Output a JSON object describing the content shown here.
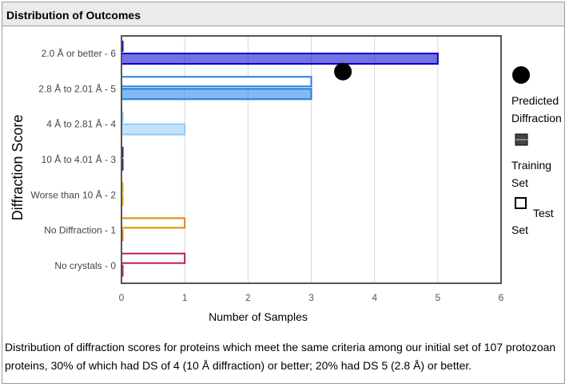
{
  "panel": {
    "title": "Distribution of Outcomes"
  },
  "caption": "Distribution of diffraction scores for proteins which meet the same criteria among our initial set of 107 protozoan proteins, 30% of which had DS of 4 (10 Å diffraction) or better; 20% had DS 5 (2.8 Å) or better.",
  "legend": {
    "predicted_line1": "Predicted",
    "predicted_line2": "Diffraction",
    "training_line1": "Training",
    "training_line2": "Set",
    "test_line1": "Test",
    "test_line2": "Set"
  },
  "chart_data": {
    "type": "bar",
    "orientation": "horizontal",
    "ylabel": "Diffraction Score",
    "xlabel": "Number of Samples",
    "xlim": [
      0,
      6
    ],
    "xticks": [
      0,
      1,
      2,
      3,
      4,
      5,
      6
    ],
    "grid": true,
    "legend_position": "right",
    "categories": [
      "2.0 Å or better - 6",
      "2.8 Å to 2.01 Å - 5",
      "4 Å to 2.81 Å - 4",
      "10 Å to 4.01 Å - 3",
      "Worse than 10 Å - 2",
      "No Diffraction - 1",
      "No crystals - 0"
    ],
    "category_colors": [
      "#0000cc",
      "#1e7fe8",
      "#90caf9",
      "#1a2a6e",
      "#e6b800",
      "#e08a00",
      "#c2185b"
    ],
    "series": [
      {
        "name": "Training Set",
        "values": [
          5,
          3,
          1,
          0,
          0,
          0,
          0
        ]
      },
      {
        "name": "Test Set",
        "values": [
          0,
          3,
          0,
          0,
          0,
          1,
          1
        ]
      }
    ],
    "predicted": {
      "name": "Predicted Diffraction",
      "value": 3.5
    }
  }
}
